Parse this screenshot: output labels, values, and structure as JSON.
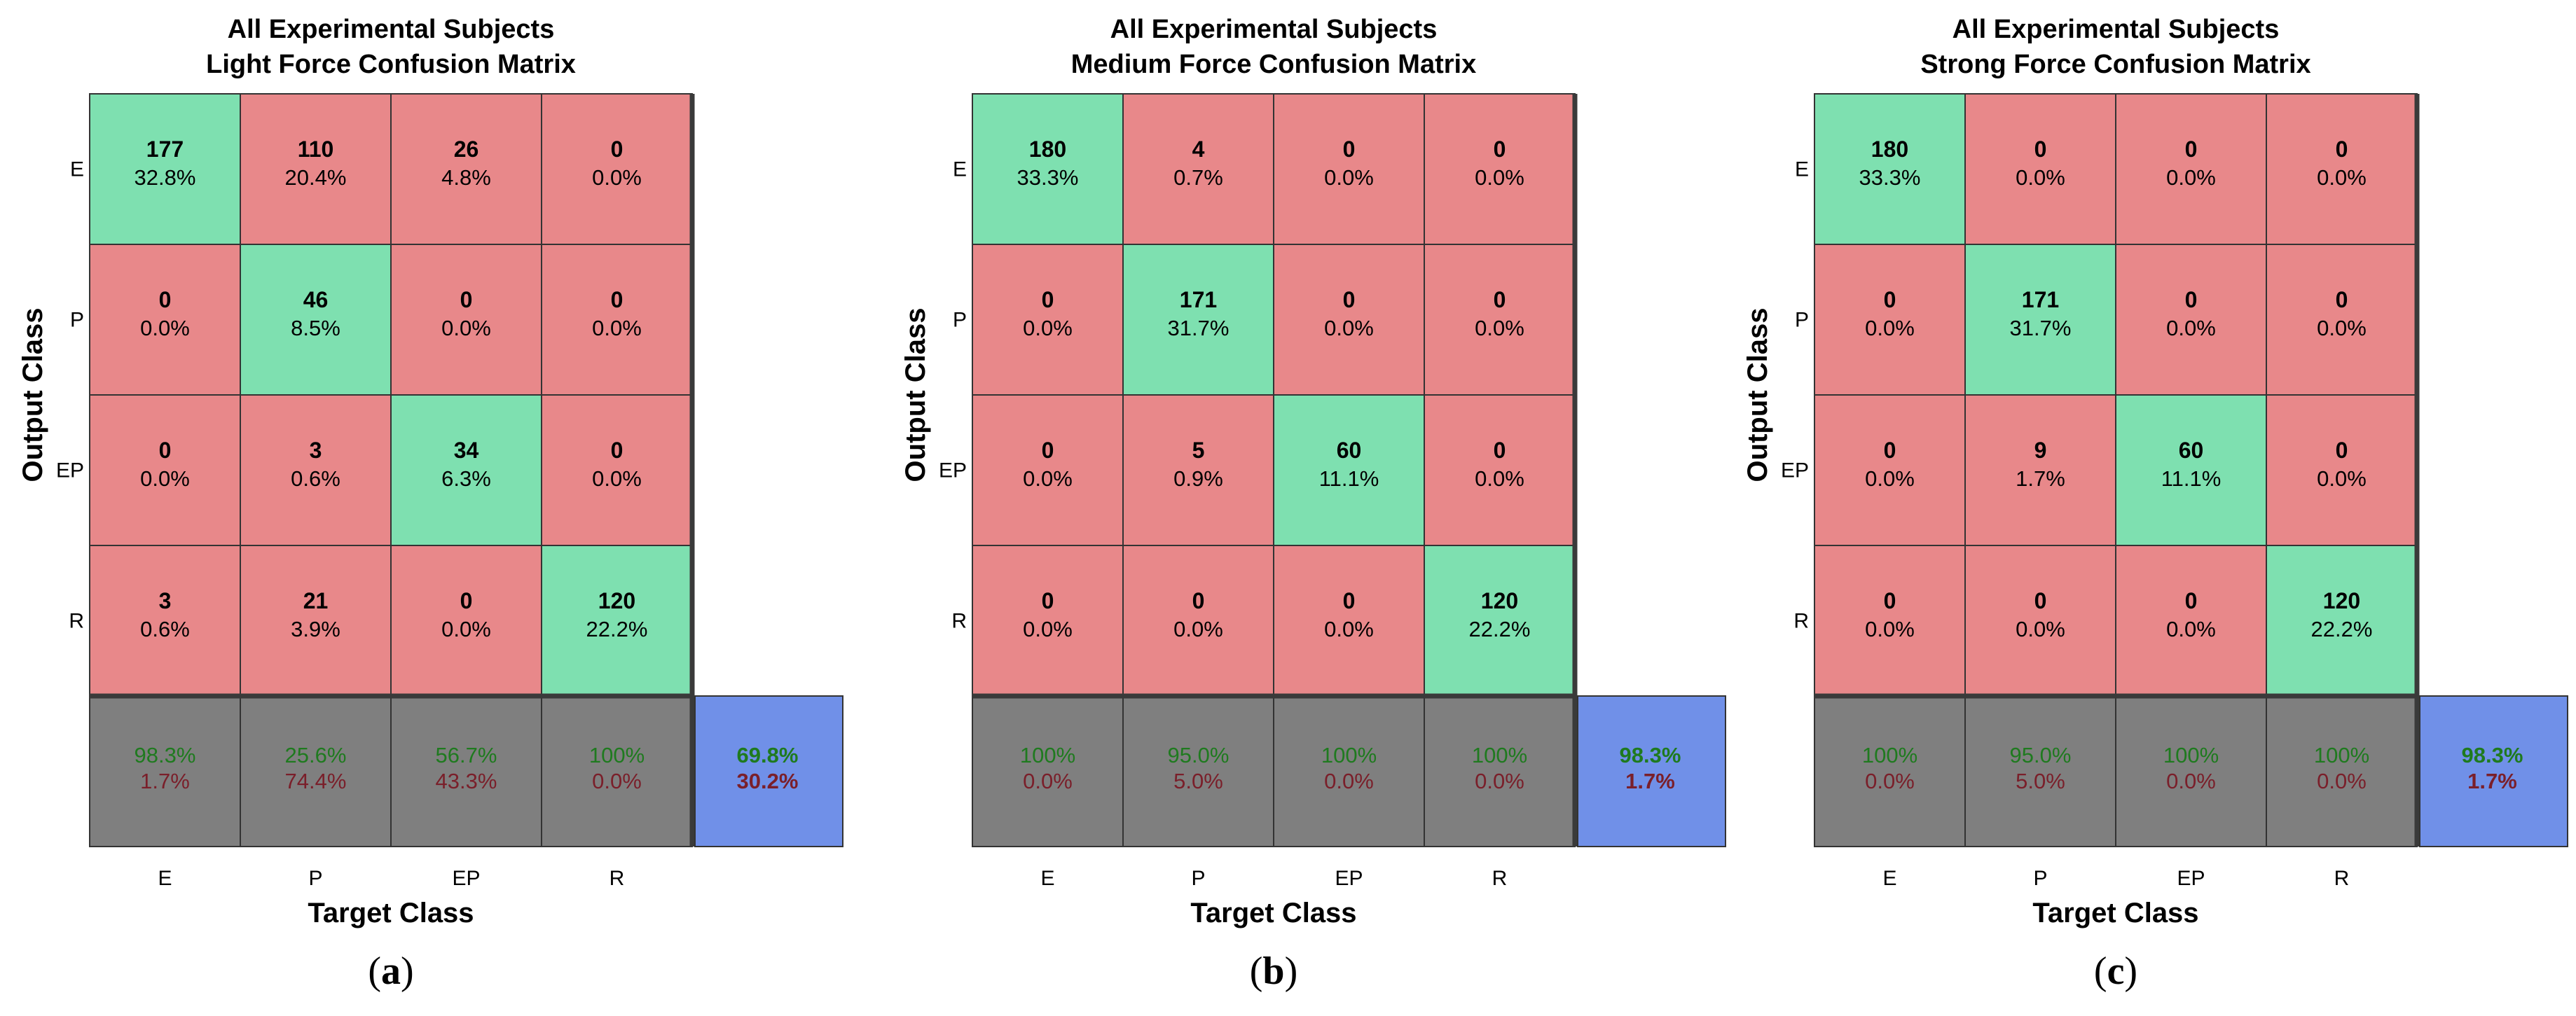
{
  "colors": {
    "correct": "#7ee0b0",
    "incorrect": "#e8888a",
    "summary": "#7f7f7f",
    "total": "#7090e8",
    "grid": "#333333",
    "good_text": "#1f7a1f",
    "bad_text": "#7a1f2a"
  },
  "chart_data": [
    {
      "type": "heatmap",
      "title_line1": "All Experimental Subjects",
      "title_line2": "Light Force Confusion Matrix",
      "xlabel": "Target Class",
      "ylabel": "Output Class",
      "classes": [
        "E",
        "P",
        "EP",
        "R"
      ],
      "caption_letter": "a",
      "cells": [
        [
          {
            "count": "177",
            "pct": "32.8%"
          },
          {
            "count": "110",
            "pct": "20.4%"
          },
          {
            "count": "26",
            "pct": "4.8%"
          },
          {
            "count": "0",
            "pct": "0.0%"
          }
        ],
        [
          {
            "count": "0",
            "pct": "0.0%"
          },
          {
            "count": "46",
            "pct": "8.5%"
          },
          {
            "count": "0",
            "pct": "0.0%"
          },
          {
            "count": "0",
            "pct": "0.0%"
          }
        ],
        [
          {
            "count": "0",
            "pct": "0.0%"
          },
          {
            "count": "3",
            "pct": "0.6%"
          },
          {
            "count": "34",
            "pct": "6.3%"
          },
          {
            "count": "0",
            "pct": "0.0%"
          }
        ],
        [
          {
            "count": "3",
            "pct": "0.6%"
          },
          {
            "count": "21",
            "pct": "3.9%"
          },
          {
            "count": "0",
            "pct": "0.0%"
          },
          {
            "count": "120",
            "pct": "22.2%"
          }
        ]
      ],
      "summary": [
        {
          "good": "98.3%",
          "bad": "1.7%"
        },
        {
          "good": "25.6%",
          "bad": "74.4%"
        },
        {
          "good": "56.7%",
          "bad": "43.3%"
        },
        {
          "good": "100%",
          "bad": "0.0%"
        }
      ],
      "total": {
        "good": "69.8%",
        "bad": "30.2%"
      }
    },
    {
      "type": "heatmap",
      "title_line1": "All Experimental Subjects",
      "title_line2": "Medium Force Confusion Matrix",
      "xlabel": "Target Class",
      "ylabel": "Output Class",
      "classes": [
        "E",
        "P",
        "EP",
        "R"
      ],
      "caption_letter": "b",
      "cells": [
        [
          {
            "count": "180",
            "pct": "33.3%"
          },
          {
            "count": "4",
            "pct": "0.7%"
          },
          {
            "count": "0",
            "pct": "0.0%"
          },
          {
            "count": "0",
            "pct": "0.0%"
          }
        ],
        [
          {
            "count": "0",
            "pct": "0.0%"
          },
          {
            "count": "171",
            "pct": "31.7%"
          },
          {
            "count": "0",
            "pct": "0.0%"
          },
          {
            "count": "0",
            "pct": "0.0%"
          }
        ],
        [
          {
            "count": "0",
            "pct": "0.0%"
          },
          {
            "count": "5",
            "pct": "0.9%"
          },
          {
            "count": "60",
            "pct": "11.1%"
          },
          {
            "count": "0",
            "pct": "0.0%"
          }
        ],
        [
          {
            "count": "0",
            "pct": "0.0%"
          },
          {
            "count": "0",
            "pct": "0.0%"
          },
          {
            "count": "0",
            "pct": "0.0%"
          },
          {
            "count": "120",
            "pct": "22.2%"
          }
        ]
      ],
      "summary": [
        {
          "good": "100%",
          "bad": "0.0%"
        },
        {
          "good": "95.0%",
          "bad": "5.0%"
        },
        {
          "good": "100%",
          "bad": "0.0%"
        },
        {
          "good": "100%",
          "bad": "0.0%"
        }
      ],
      "total": {
        "good": "98.3%",
        "bad": "1.7%"
      }
    },
    {
      "type": "heatmap",
      "title_line1": "All Experimental Subjects",
      "title_line2": "Strong Force Confusion Matrix",
      "xlabel": "Target Class",
      "ylabel": "Output Class",
      "classes": [
        "E",
        "P",
        "EP",
        "R"
      ],
      "caption_letter": "c",
      "cells": [
        [
          {
            "count": "180",
            "pct": "33.3%"
          },
          {
            "count": "0",
            "pct": "0.0%"
          },
          {
            "count": "0",
            "pct": "0.0%"
          },
          {
            "count": "0",
            "pct": "0.0%"
          }
        ],
        [
          {
            "count": "0",
            "pct": "0.0%"
          },
          {
            "count": "171",
            "pct": "31.7%"
          },
          {
            "count": "0",
            "pct": "0.0%"
          },
          {
            "count": "0",
            "pct": "0.0%"
          }
        ],
        [
          {
            "count": "0",
            "pct": "0.0%"
          },
          {
            "count": "9",
            "pct": "1.7%"
          },
          {
            "count": "60",
            "pct": "11.1%"
          },
          {
            "count": "0",
            "pct": "0.0%"
          }
        ],
        [
          {
            "count": "0",
            "pct": "0.0%"
          },
          {
            "count": "0",
            "pct": "0.0%"
          },
          {
            "count": "0",
            "pct": "0.0%"
          },
          {
            "count": "120",
            "pct": "22.2%"
          }
        ]
      ],
      "summary": [
        {
          "good": "100%",
          "bad": "0.0%"
        },
        {
          "good": "95.0%",
          "bad": "5.0%"
        },
        {
          "good": "100%",
          "bad": "0.0%"
        },
        {
          "good": "100%",
          "bad": "0.0%"
        }
      ],
      "total": {
        "good": "98.3%",
        "bad": "1.7%"
      }
    }
  ]
}
